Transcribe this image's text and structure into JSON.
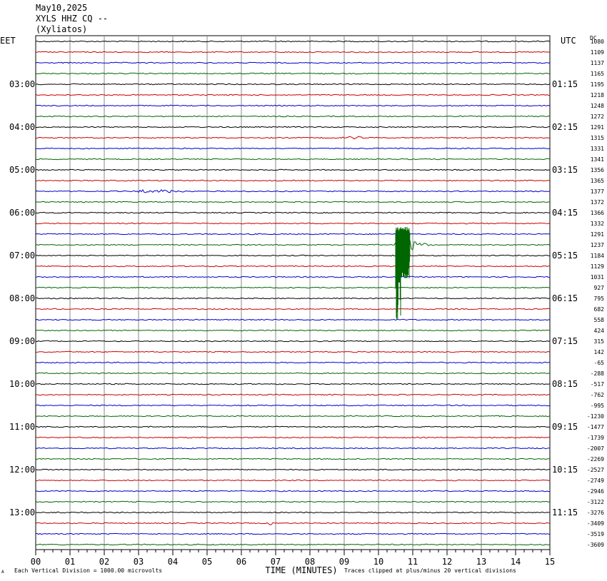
{
  "header": {
    "date": "May10,2025",
    "station": "XYLS HHZ CQ --",
    "site": "(Xyliatos)"
  },
  "left_timezone": "EET",
  "right_timezone": "UTC",
  "dc_label": "DC",
  "left_times": [
    "03:00",
    "04:00",
    "05:00",
    "06:00",
    "07:00",
    "08:00",
    "09:00",
    "10:00",
    "11:00",
    "12:00",
    "13:00"
  ],
  "right_times": [
    "01:15",
    "02:15",
    "03:15",
    "04:15",
    "05:15",
    "06:15",
    "07:15",
    "08:15",
    "09:15",
    "10:15",
    "11:15"
  ],
  "dc_offsets": [
    "1080",
    "1109",
    "1137",
    "1165",
    "1195",
    "1218",
    "1248",
    "1272",
    "1291",
    "1315",
    "1331",
    "1341",
    "1356",
    "1365",
    "1377",
    "1372",
    "1366",
    "1332",
    "1291",
    "1237",
    "1184",
    "1129",
    "1031",
    "927",
    "795",
    "682",
    "558",
    "424",
    "315",
    "142",
    "-65",
    "-288",
    "-517",
    "-762",
    "-995",
    "-1230",
    "-1477",
    "-1739",
    "-2007",
    "-2269",
    "-2527",
    "-2749",
    "-2946",
    "-3122",
    "-3276",
    "-3409",
    "-3519",
    "-3609"
  ],
  "x_ticks": [
    "00",
    "01",
    "02",
    "03",
    "04",
    "05",
    "06",
    "07",
    "08",
    "09",
    "10",
    "11",
    "12",
    "13",
    "14",
    "15"
  ],
  "xlabel": "TIME (MINUTES)",
  "footer_left_mark": "A",
  "footer_scale": "Each Vertical Division = 1000.00 microvolts",
  "footer_clip": "Traces clipped at plus/minus 20 vertical divisions",
  "colors": [
    "#000000",
    "#cc0000",
    "#0000cc",
    "#006600"
  ],
  "chart_data": {
    "type": "line",
    "title": "XYLS HHZ CQ --",
    "xlabel": "TIME (MINUTES)",
    "xlim": [
      0,
      15
    ],
    "trace_count": 48,
    "trace_minutes": 15,
    "trace_colors_cycle": [
      "black",
      "red",
      "blue",
      "green"
    ],
    "events": [
      {
        "trace_index": 9,
        "minute_start": 8.9,
        "minute_end": 9.5,
        "amplitude": "small"
      },
      {
        "trace_index": 14,
        "minute_start": 3.0,
        "minute_end": 4.3,
        "amplitude": "small"
      },
      {
        "trace_index": 19,
        "minute_start": 10.5,
        "minute_end": 12.0,
        "amplitude": "large",
        "note": "clipped"
      },
      {
        "trace_index": 45,
        "minute_start": 6.8,
        "minute_end": 6.95,
        "amplitude": "small"
      }
    ]
  }
}
